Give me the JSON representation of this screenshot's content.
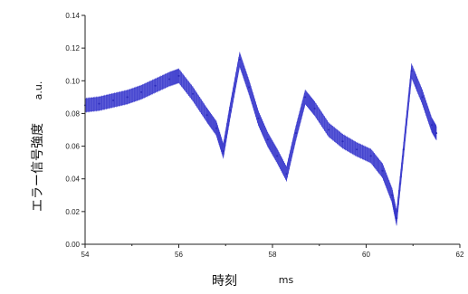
{
  "chart_data": {
    "type": "line",
    "title": "",
    "xlabel": "時刻",
    "xunit": "ms",
    "ylabel": "エラー信号強度",
    "yunit": "a.u.",
    "xlim": [
      54,
      62
    ],
    "ylim": [
      0.0,
      0.14
    ],
    "grid": false,
    "legend": "none",
    "x_ticks": [
      "54",
      "56",
      "58",
      "60",
      "62"
    ],
    "y_ticks": [
      "0.00",
      "0.02",
      "0.04",
      "0.06",
      "0.08",
      "0.10",
      "0.12",
      "0.14"
    ],
    "colors": {
      "series": "#4646d2",
      "axis": "#222222"
    },
    "series": [
      {
        "band_half_width": 0.004,
        "x": [
          54.0,
          54.3,
          54.6,
          54.9,
          55.2,
          55.5,
          55.8,
          56.0,
          56.3,
          56.6,
          56.8,
          56.95,
          57.1,
          57.3,
          57.5,
          57.7,
          57.9,
          58.1,
          58.3,
          58.5,
          58.7,
          58.9,
          59.2,
          59.5,
          59.8,
          60.1,
          60.35,
          60.55,
          60.65,
          60.8,
          60.97,
          61.2,
          61.4,
          61.5
        ],
        "y": [
          0.085,
          0.086,
          0.088,
          0.09,
          0.093,
          0.097,
          0.101,
          0.103,
          0.092,
          0.079,
          0.071,
          0.057,
          0.082,
          0.113,
          0.096,
          0.077,
          0.064,
          0.054,
          0.043,
          0.068,
          0.09,
          0.083,
          0.07,
          0.063,
          0.058,
          0.054,
          0.045,
          0.03,
          0.016,
          0.058,
          0.106,
          0.09,
          0.073,
          0.068
        ]
      }
    ]
  }
}
